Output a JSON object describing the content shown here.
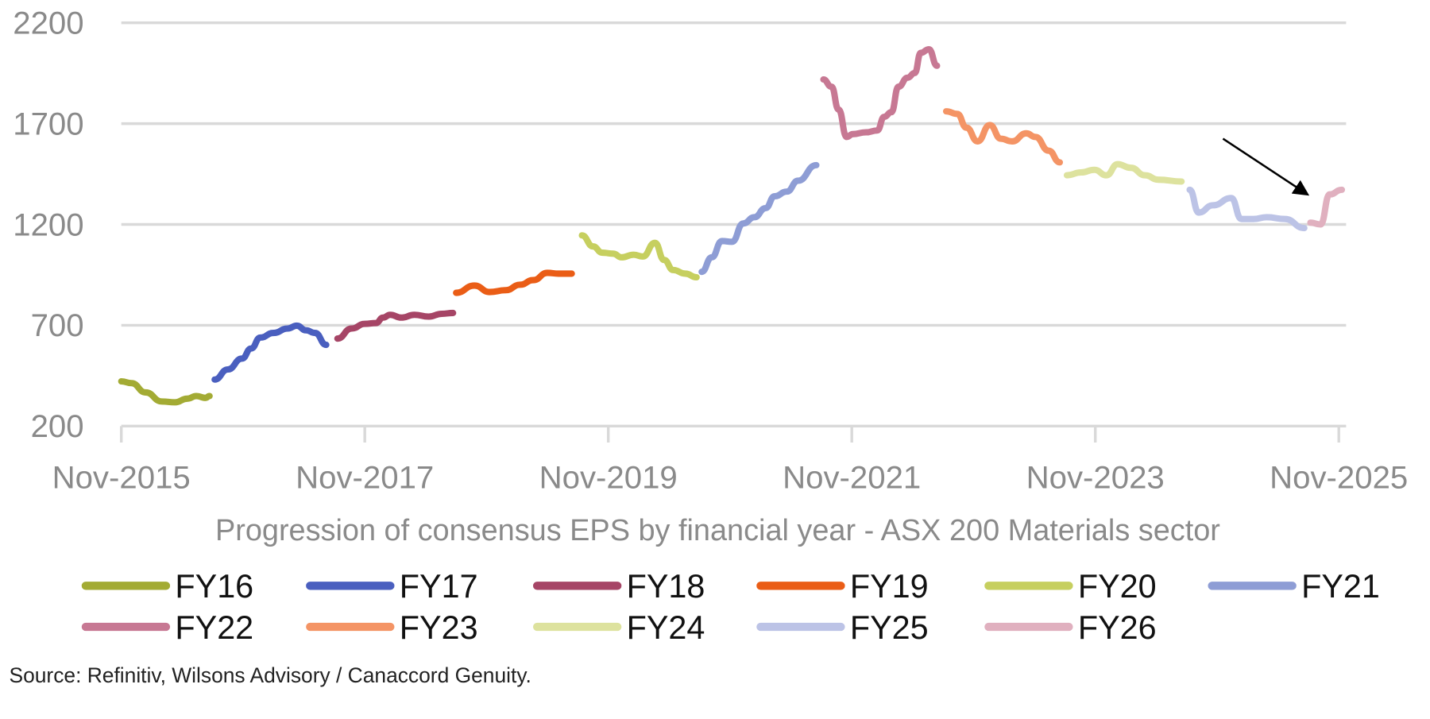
{
  "chart_data": {
    "type": "line",
    "title": "Progression of consensus EPS by financial year - ASX 200 Materials sector",
    "xlabel": "Progression of consensus EPS by financial year - ASX 200 Materials sector",
    "ylabel": "",
    "x_unit": "months since Nov-2015",
    "xlim": [
      0,
      120
    ],
    "ylim": [
      200,
      2200
    ],
    "y_ticks": [
      "2200",
      "1700",
      "1200",
      "700",
      "200"
    ],
    "y_tick_values": [
      2200,
      1700,
      1200,
      700,
      200
    ],
    "x_ticks": [
      "Nov-2015",
      "Nov-2017",
      "Nov-2019",
      "Nov-2021",
      "Nov-2023",
      "Nov-2025"
    ],
    "x_tick_values": [
      0,
      24,
      48,
      72,
      96,
      120
    ],
    "grid": "horizontal",
    "legend_position": "bottom",
    "annotation": "arrow pointing to FY26 start",
    "series": [
      {
        "name": "FY16",
        "color": "#a3ab34",
        "x": [
          0,
          1,
          2.4,
          4,
          5.3,
          6.5,
          7.4,
          8.3,
          8.7
        ],
        "y": [
          422,
          413,
          367,
          322,
          318,
          336,
          349,
          340,
          349
        ]
      },
      {
        "name": "FY17",
        "color": "#4a5fbf",
        "x": [
          9.2,
          10.5,
          11.9,
          12.8,
          13.7,
          15.0,
          16.4,
          17.3,
          18.2,
          19.1,
          20.2
        ],
        "y": [
          431,
          481,
          535,
          585,
          639,
          662,
          684,
          698,
          675,
          662,
          603
        ]
      },
      {
        "name": "FY18",
        "color": "#a64566",
        "x": [
          21.3,
          22.7,
          24.0,
          25.1,
          25.8,
          26.5,
          27.6,
          28.9,
          30.3,
          31.6,
          32.7
        ],
        "y": [
          634,
          684,
          707,
          711,
          738,
          752,
          738,
          752,
          743,
          757,
          761
        ]
      },
      {
        "name": "FY19",
        "color": "#ea5d16",
        "x": [
          33.0,
          34.8,
          36.3,
          37.9,
          39.3,
          40.6,
          42.0,
          43.1,
          44.4
        ],
        "y": [
          861,
          897,
          865,
          874,
          901,
          924,
          960,
          956,
          956
        ]
      },
      {
        "name": "FY20",
        "color": "#c6cf5f",
        "x": [
          45.4,
          46.5,
          47.4,
          48.5,
          49.3,
          50.5,
          51.4,
          52.6,
          53.5,
          54.4,
          55.6,
          56.7
        ],
        "y": [
          1146,
          1091,
          1060,
          1055,
          1037,
          1050,
          1041,
          1109,
          1024,
          974,
          956,
          938
        ]
      },
      {
        "name": "FY21",
        "color": "#8e9dd5",
        "x": [
          57.2,
          58.2,
          59.2,
          60.2,
          61.3,
          62.4,
          63.5,
          64.4,
          65.6,
          66.7,
          68.5
        ],
        "y": [
          965,
          1037,
          1118,
          1114,
          1205,
          1236,
          1281,
          1340,
          1363,
          1417,
          1494
        ]
      },
      {
        "name": "FY22",
        "color": "#c77893",
        "x": [
          69.2,
          70.0,
          70.7,
          71.5,
          72.1,
          73.4,
          74.5,
          75.2,
          75.9,
          76.6,
          77.5,
          78.2,
          78.8,
          79.6,
          80.4
        ],
        "y": [
          1919,
          1883,
          1770,
          1634,
          1648,
          1657,
          1666,
          1734,
          1757,
          1883,
          1928,
          1951,
          2051,
          2069,
          1987
        ]
      },
      {
        "name": "FY23",
        "color": "#f49465",
        "x": [
          81.3,
          82.4,
          83.3,
          84.4,
          85.6,
          86.7,
          87.8,
          89.2,
          90.1,
          91.4,
          92.5
        ],
        "y": [
          1761,
          1748,
          1680,
          1612,
          1693,
          1625,
          1612,
          1652,
          1634,
          1566,
          1508
        ]
      },
      {
        "name": "FY24",
        "color": "#dde29e",
        "x": [
          93.2,
          94.6,
          95.9,
          97.1,
          98.2,
          99.5,
          100.9,
          102.2,
          104.5
        ],
        "y": [
          1444,
          1458,
          1471,
          1444,
          1499,
          1481,
          1444,
          1422,
          1413
        ]
      },
      {
        "name": "FY25",
        "color": "#bcc3e6",
        "x": [
          105.3,
          106.2,
          107.6,
          109.4,
          110.4,
          111.6,
          112.9,
          114.7,
          116.6
        ],
        "y": [
          1372,
          1259,
          1295,
          1331,
          1227,
          1227,
          1236,
          1227,
          1182
        ]
      },
      {
        "name": "FY26",
        "color": "#e0b0bf",
        "x": [
          117.2,
          118.2,
          119.1,
          120.3
        ],
        "y": [
          1209,
          1200,
          1349,
          1372
        ]
      }
    ]
  },
  "source": "Source: Refinitiv, Wilsons Advisory / Canaccord Genuity."
}
